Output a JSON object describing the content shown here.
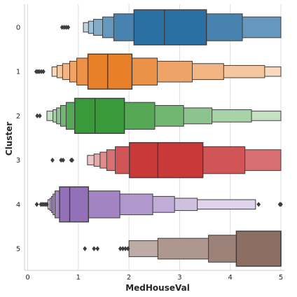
{
  "chart_data": {
    "type": "boxen",
    "xlabel": "MedHouseVal",
    "ylabel": "Cluster",
    "xlim": [
      -0.05,
      5.22
    ],
    "x_ticks": [
      0,
      1,
      2,
      3,
      4,
      5
    ],
    "grid": "vertical",
    "categories": [
      "0",
      "1",
      "2",
      "3",
      "4",
      "5"
    ],
    "series": [
      {
        "category": "0",
        "color": "#2a6fa3",
        "median": 2.7,
        "levels": [
          [
            2.1,
            3.53
          ],
          [
            1.7,
            4.24
          ],
          [
            1.48,
            5.0
          ],
          [
            1.3,
            5.0
          ],
          [
            1.2,
            5.0
          ],
          [
            1.1,
            5.0
          ]
        ],
        "outliers": [
          0.68,
          0.72,
          0.76,
          0.8
        ]
      },
      {
        "category": "1",
        "color": "#e8802a",
        "median": 1.58,
        "levels": [
          [
            1.19,
            2.06
          ],
          [
            0.97,
            2.56
          ],
          [
            0.83,
            3.25
          ],
          [
            0.69,
            3.87
          ],
          [
            0.58,
            4.68
          ],
          [
            0.48,
            5.0
          ]
        ],
        "outliers": [
          0.17,
          0.2,
          0.23,
          0.27,
          0.31
        ]
      },
      {
        "category": "2",
        "color": "#3a9a3a",
        "median": 1.33,
        "levels": [
          [
            0.93,
            1.91
          ],
          [
            0.76,
            2.51
          ],
          [
            0.65,
            3.08
          ],
          [
            0.57,
            3.64
          ],
          [
            0.5,
            4.42
          ],
          [
            0.38,
            5.0
          ]
        ],
        "outliers": [
          0.19,
          0.24
        ]
      },
      {
        "category": "3",
        "color": "#c9393a",
        "median": 2.57,
        "levels": [
          [
            2.01,
            3.46
          ],
          [
            1.73,
            4.29
          ],
          [
            1.56,
            5.0
          ],
          [
            1.43,
            5.0
          ],
          [
            1.31,
            5.0
          ],
          [
            1.18,
            5.0
          ]
        ],
        "outliers": [
          0.49,
          0.66,
          0.7,
          0.86,
          0.88
        ]
      },
      {
        "category": "4",
        "color": "#9370b8",
        "median": 0.83,
        "levels": [
          [
            0.63,
            1.2
          ],
          [
            0.54,
            1.82
          ],
          [
            0.5,
            2.47
          ],
          [
            0.47,
            2.9
          ],
          [
            0.44,
            3.35
          ],
          [
            0.4,
            4.5
          ]
        ],
        "outliers": [
          0.18,
          0.26,
          0.29,
          0.32,
          0.35,
          0.38,
          4.56,
          4.98,
          5.0
        ]
      },
      {
        "category": "5",
        "color": "#8d6e63",
        "median": 5.0,
        "levels": [
          [
            4.12,
            5.0
          ],
          [
            3.57,
            5.0
          ],
          [
            2.57,
            5.0
          ],
          [
            2.0,
            5.0
          ]
        ],
        "outliers": [
          1.13,
          1.31,
          1.38,
          1.83,
          1.88,
          1.93,
          1.98
        ]
      }
    ]
  }
}
